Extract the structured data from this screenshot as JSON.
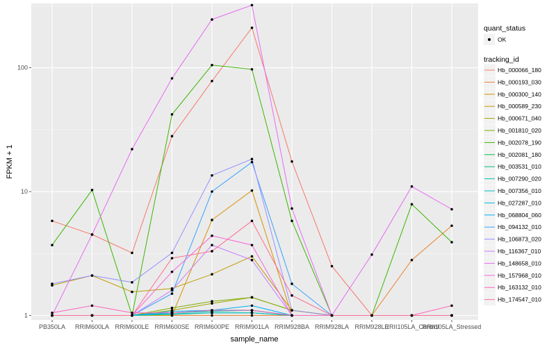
{
  "chart_data": {
    "type": "line",
    "title": "",
    "xlabel": "sample_name",
    "ylabel": "FPKM + 1",
    "y_scale": "log10",
    "ylim": [
      0.92,
      330
    ],
    "y_ticks": [
      1,
      10,
      100
    ],
    "y_tick_labels": [
      "1",
      "10",
      "100"
    ],
    "grid": true,
    "legend_placement": "right",
    "point_color": "#000000",
    "panel_color": "#ebebeb",
    "categories": [
      "PB350LA",
      "RRIM600LA",
      "RRIM600LE",
      "RRIM600SE",
      "RRIM600PE",
      "RRIM901LA",
      "RRIM928BA",
      "RRIM928LA",
      "RRIM928LE",
      "RRII105LA_Control",
      "RRII105LA_Stressed"
    ],
    "legend_points": {
      "title": "quant_status",
      "entries": [
        "OK"
      ]
    },
    "legend_lines": {
      "title": "tracking_id"
    },
    "series": [
      {
        "name": "Hb_000066_180",
        "color": "#F8766D",
        "values": [
          5.8,
          4.5,
          3.2,
          28,
          78,
          210,
          17.5,
          2.5,
          1,
          1,
          1
        ]
      },
      {
        "name": "Hb_000193_030",
        "color": "#EA8331",
        "values": [
          1,
          1,
          1,
          1,
          1,
          1,
          1,
          1,
          1,
          2.8,
          5.3
        ]
      },
      {
        "name": "Hb_000300_140",
        "color": "#D89000",
        "values": [
          1,
          1,
          1,
          1,
          5.9,
          10.2,
          1,
          1,
          1,
          1,
          1
        ]
      },
      {
        "name": "Hb_000589_230",
        "color": "#C09B00",
        "values": [
          1.75,
          2.1,
          1.55,
          1.65,
          2.15,
          3.0,
          1.1,
          1,
          1,
          1,
          1
        ]
      },
      {
        "name": "Hb_000671_040",
        "color": "#A3A500",
        "values": [
          1,
          1,
          1,
          1.1,
          1.25,
          1.4,
          1.1,
          1,
          1,
          1,
          1
        ]
      },
      {
        "name": "Hb_001810_020",
        "color": "#7CAE00",
        "values": [
          1,
          1,
          1,
          1.15,
          1.3,
          1.4,
          1.1,
          1,
          1,
          1,
          1
        ]
      },
      {
        "name": "Hb_002078_190",
        "color": "#39B600",
        "values": [
          3.7,
          10.3,
          1,
          42,
          105,
          97,
          5.8,
          1,
          1,
          7.9,
          3.9
        ]
      },
      {
        "name": "Hb_002081_180",
        "color": "#00BB4E",
        "values": [
          1,
          1,
          1,
          1.05,
          1.1,
          1.1,
          1,
          1,
          1,
          1,
          1
        ]
      },
      {
        "name": "Hb_003531_010",
        "color": "#00BF7D",
        "values": [
          1,
          1,
          1,
          1.02,
          1.05,
          1.05,
          1,
          1,
          1,
          1,
          1
        ]
      },
      {
        "name": "Hb_007290_020",
        "color": "#00C1A3",
        "values": [
          1,
          1,
          1,
          1.05,
          1.08,
          1.1,
          1,
          1,
          1,
          1,
          1
        ]
      },
      {
        "name": "Hb_007356_010",
        "color": "#00BFC4",
        "values": [
          1,
          1,
          1,
          1.03,
          1.05,
          1.05,
          1,
          1,
          1,
          1,
          1
        ]
      },
      {
        "name": "Hb_027287_010",
        "color": "#00BAE0",
        "values": [
          1,
          1,
          1,
          1.05,
          1.1,
          1.1,
          1,
          1,
          1,
          1,
          1
        ]
      },
      {
        "name": "Hb_068804_060",
        "color": "#00B0F6",
        "values": [
          1,
          1,
          1,
          1.08,
          1.1,
          1.2,
          1,
          1,
          1,
          1,
          1
        ]
      },
      {
        "name": "Hb_094132_010",
        "color": "#35A2FF",
        "values": [
          1,
          1,
          1,
          1.5,
          10,
          17.3,
          1.8,
          1,
          1,
          1,
          1
        ]
      },
      {
        "name": "Hb_106873_020",
        "color": "#9590FF",
        "values": [
          1.8,
          2.1,
          1.85,
          3.2,
          13.5,
          18.3,
          1.1,
          1,
          1,
          1,
          1
        ]
      },
      {
        "name": "Hb_116367_010",
        "color": "#C77CFF",
        "values": [
          1,
          1,
          1,
          1.6,
          3.7,
          2.8,
          1,
          1,
          1,
          1,
          1
        ]
      },
      {
        "name": "Hb_148658_010",
        "color": "#E76BF3",
        "values": [
          1,
          4.5,
          22,
          82,
          245,
          320,
          7.3,
          1,
          3.1,
          11,
          7.2
        ]
      },
      {
        "name": "Hb_157968_010",
        "color": "#FA62DB",
        "values": [
          1,
          1,
          1,
          2.25,
          4.4,
          3.7,
          1,
          1,
          1,
          1,
          1
        ]
      },
      {
        "name": "Hb_163132_010",
        "color": "#FF62BC",
        "values": [
          1.05,
          1.2,
          1.05,
          1.05,
          1.1,
          1.1,
          1,
          1,
          1,
          1,
          1.2
        ]
      },
      {
        "name": "Hb_174547_010",
        "color": "#FF6C91",
        "values": [
          1,
          1,
          1,
          2.9,
          3.3,
          5.8,
          1.45,
          1,
          1,
          1,
          1
        ]
      }
    ]
  }
}
